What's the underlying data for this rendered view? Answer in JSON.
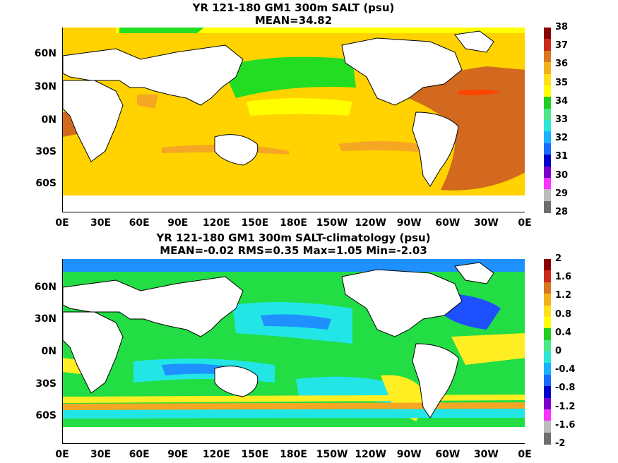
{
  "panels": [
    {
      "title_line1": "YR 121-180 GM1 300m SALT (psu)",
      "title_line2": "MEAN=34.82",
      "colorbar": {
        "labels": [
          "38",
          "37",
          "36",
          "35",
          "34",
          "33",
          "32",
          "31",
          "30",
          "29",
          "28"
        ],
        "colors": [
          "#8b0000",
          "#cc2a1a",
          "#d9781e",
          "#f2b21a",
          "#ffe11a",
          "#ffff00",
          "#22cc22",
          "#4ee88a",
          "#2ee6d4",
          "#1ab2ff",
          "#1a6bff",
          "#0000cc",
          "#7a00cc",
          "#ff33ff",
          "#bdbdbd",
          "#6e6e6e"
        ]
      }
    },
    {
      "title_line1": "YR 121-180 GM1 300m SALT-climatology (psu)",
      "title_line2": "MEAN=-0.02   RMS=0.35   Max=1.05   Min=-2.03",
      "colorbar": {
        "labels": [
          "2",
          "1.6",
          "1.2",
          "0.8",
          "0.4",
          "0",
          "-0.4",
          "-0.8",
          "-1.2",
          "-1.6",
          "-2"
        ],
        "colors": [
          "#8b0000",
          "#cc2a1a",
          "#d9781e",
          "#f2b21a",
          "#ffe11a",
          "#ffff00",
          "#22cc22",
          "#4ee88a",
          "#2ee6d4",
          "#1ab2ff",
          "#1a6bff",
          "#0000cc",
          "#7a00cc",
          "#ff33ff",
          "#bdbdbd",
          "#6e6e6e"
        ]
      }
    }
  ],
  "lat_labels": [
    "60N",
    "30N",
    "0N",
    "30S",
    "60S"
  ],
  "lon_labels": [
    "0E",
    "30E",
    "60E",
    "90E",
    "120E",
    "150E",
    "180E",
    "150W",
    "120W",
    "90W",
    "60W",
    "30W",
    "0E"
  ],
  "palette": {
    "land": "#ffffff",
    "top_ocean": "#ffd700",
    "top_atlantic": "#d2691e",
    "top_pacific_fresh": "#22dd22",
    "top_subtropical": "#f5a623",
    "bottom_ocean": "#22dd44",
    "bottom_cyan": "#22e6e6",
    "bottom_blue": "#1e90ff",
    "bottom_yellow": "#ffee22"
  }
}
